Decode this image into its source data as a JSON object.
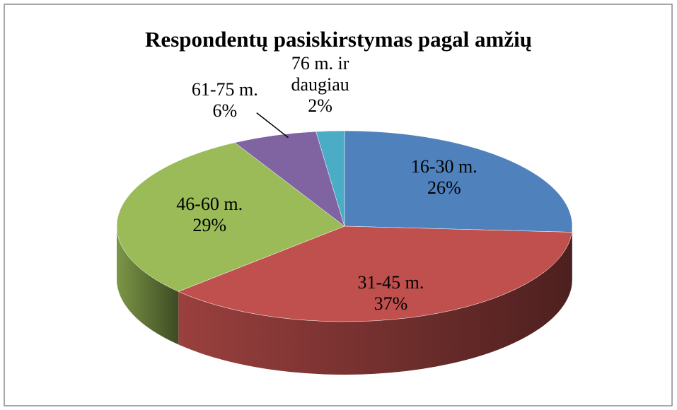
{
  "chart_data": {
    "type": "pie",
    "title": "Respondentų pasiskirstymas  pagal amžių",
    "categories": [
      "16-30 m.",
      "31-45 m.",
      "46-60 m.",
      "61-75 m.",
      "76 m. ir daugiau"
    ],
    "values": [
      26,
      37,
      29,
      6,
      2
    ],
    "value_labels": [
      "26%",
      "37%",
      "29%",
      "6%",
      "2%"
    ],
    "colors": [
      "#4f81bd",
      "#c0504d",
      "#9bbb59",
      "#8064a2",
      "#4bacc6"
    ]
  }
}
